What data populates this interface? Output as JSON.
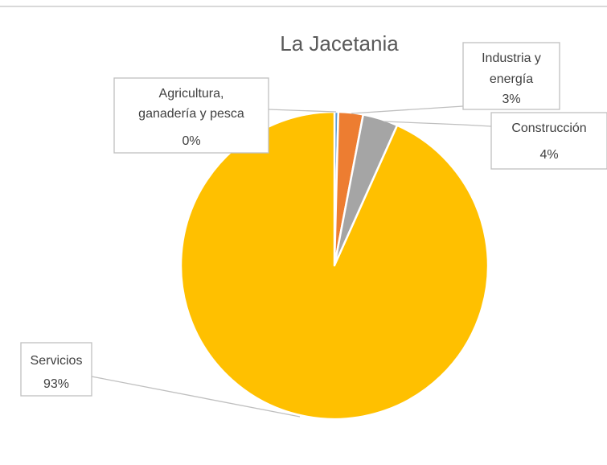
{
  "chart_data": {
    "type": "pie",
    "title": "La Jacetania",
    "slices": [
      {
        "name": "Agricultura, ganadería y pesca",
        "label_lines": [
          "Agricultura,",
          "ganadería y pesca",
          "0%"
        ],
        "value": 0.4,
        "display": "0%",
        "color": "#5b9bd5"
      },
      {
        "name": "Industria y energía",
        "label_lines": [
          "Industria y",
          "energía",
          "3%"
        ],
        "value": 2.6,
        "display": "3%",
        "color": "#ed7d31"
      },
      {
        "name": "Construcción",
        "label_lines": [
          "Construcción",
          "4%"
        ],
        "value": 3.7,
        "display": "4%",
        "color": "#a5a5a5"
      },
      {
        "name": "Servicios",
        "label_lines": [
          "Servicios",
          "93%"
        ],
        "value": 93.3,
        "display": "93%",
        "color": "#ffc000"
      }
    ],
    "legend": "none",
    "data_labels": "outside-with-leader-lines"
  }
}
